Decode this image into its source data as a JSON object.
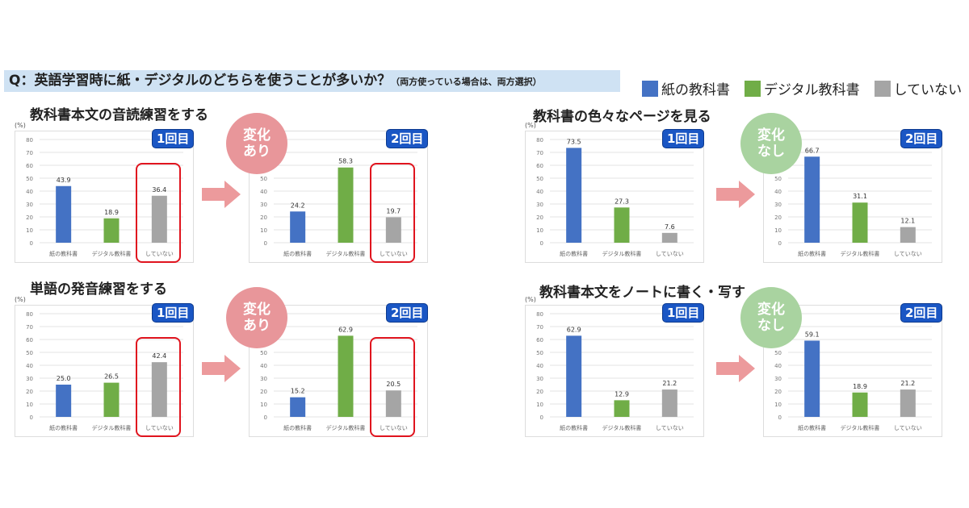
{
  "question": {
    "main": "Q：英語学習時に紙・デジタルのどちらを使うことが多いか？",
    "note": "（両方使っている場合は、両方選択）"
  },
  "legend": [
    {
      "label": "紙の教科書",
      "color": "#4472c4"
    },
    {
      "label": "デジタル教科書",
      "color": "#70ad47"
    },
    {
      "label": "していない",
      "color": "#a5a5a5"
    }
  ],
  "unit": "(%)",
  "round_labels": [
    "1回目",
    "2回目"
  ],
  "change_labels": {
    "yes": [
      "変化",
      "あり"
    ],
    "no": [
      "変化",
      "なし"
    ]
  },
  "colors": {
    "change_yes": "#e8969a",
    "change_no": "#a9d3a0",
    "arrow": "#ec9a9c",
    "highlight": "#e0141e",
    "badge": "#1a56c4"
  },
  "chart_data": [
    {
      "type": "bar",
      "title": "教科書本文の音読練習をする",
      "round": "1回目",
      "categories": [
        "紙の教科書",
        "デジタル教科書",
        "していない"
      ],
      "values": [
        43.9,
        18.9,
        36.4
      ],
      "ylim": [
        0,
        80
      ],
      "yticks": [
        0,
        10,
        20,
        30,
        40,
        50,
        60,
        70,
        80
      ],
      "ylabel": "(%)",
      "highlight": "していない",
      "grid": true
    },
    {
      "type": "bar",
      "title": "教科書本文の音読練習をする",
      "round": "2回目",
      "change": "変化あり",
      "categories": [
        "紙の教科書",
        "デジタル教科書",
        "していない"
      ],
      "values": [
        24.2,
        58.3,
        19.7
      ],
      "ylim": [
        0,
        80
      ],
      "yticks": [
        0,
        10,
        20,
        30,
        40,
        50,
        60,
        70,
        80
      ],
      "highlight": "していない",
      "grid": true
    },
    {
      "type": "bar",
      "title": "教科書の色々なページを見る",
      "round": "1回目",
      "categories": [
        "紙の教科書",
        "デジタル教科書",
        "していない"
      ],
      "values": [
        73.5,
        27.3,
        7.6
      ],
      "ylim": [
        0,
        80
      ],
      "yticks": [
        0,
        10,
        20,
        30,
        40,
        50,
        60,
        70,
        80
      ],
      "ylabel": "(%)",
      "grid": true
    },
    {
      "type": "bar",
      "title": "教科書の色々なページを見る",
      "round": "2回目",
      "change": "変化なし",
      "categories": [
        "紙の教科書",
        "デジタル教科書",
        "していない"
      ],
      "values": [
        66.7,
        31.1,
        12.1
      ],
      "ylim": [
        0,
        80
      ],
      "yticks": [
        0,
        10,
        20,
        30,
        40,
        50,
        60,
        70,
        80
      ],
      "grid": true
    },
    {
      "type": "bar",
      "title": "単語の発音練習をする",
      "round": "1回目",
      "categories": [
        "紙の教科書",
        "デジタル教科書",
        "していない"
      ],
      "values": [
        25.0,
        26.5,
        42.4
      ],
      "ylim": [
        0,
        80
      ],
      "yticks": [
        0,
        10,
        20,
        30,
        40,
        50,
        60,
        70,
        80
      ],
      "ylabel": "(%)",
      "highlight": "していない",
      "grid": true
    },
    {
      "type": "bar",
      "title": "単語の発音練習をする",
      "round": "2回目",
      "change": "変化あり",
      "categories": [
        "紙の教科書",
        "デジタル教科書",
        "していない"
      ],
      "values": [
        15.2,
        62.9,
        20.5
      ],
      "ylim": [
        0,
        80
      ],
      "yticks": [
        0,
        10,
        20,
        30,
        40,
        50,
        60,
        70,
        80
      ],
      "highlight": "していない",
      "grid": true
    },
    {
      "type": "bar",
      "title": "教科書本文をノートに書く・写す",
      "round": "1回目",
      "categories": [
        "紙の教科書",
        "デジタル教科書",
        "していない"
      ],
      "values": [
        62.9,
        12.9,
        21.2
      ],
      "ylim": [
        0,
        80
      ],
      "yticks": [
        0,
        10,
        20,
        30,
        40,
        50,
        60,
        70,
        80
      ],
      "ylabel": "(%)",
      "grid": true
    },
    {
      "type": "bar",
      "title": "教科書本文をノートに書く・写す",
      "round": "2回目",
      "change": "変化なし",
      "categories": [
        "紙の教科書",
        "デジタル教科書",
        "していない"
      ],
      "values": [
        59.1,
        18.9,
        21.2
      ],
      "ylim": [
        0,
        80
      ],
      "yticks": [
        0,
        10,
        20,
        30,
        40,
        50,
        60,
        70,
        80
      ],
      "ylabel": "(%)",
      "grid": true
    }
  ]
}
